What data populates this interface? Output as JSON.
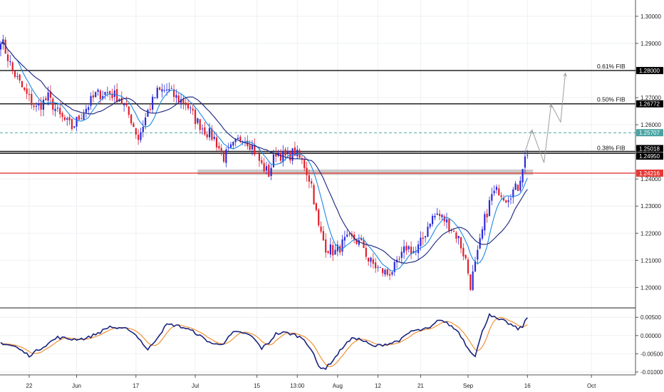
{
  "chart_data": [
    {
      "type": "candlestick",
      "panel": "price",
      "y_axis_ticks": [
        "1.30000",
        "1.29000",
        "1.28000",
        "1.27000",
        "1.26000",
        "1.25000",
        "1.24000",
        "1.23000",
        "1.22000",
        "1.21000",
        "1.20000"
      ],
      "ylim": [
        1.193,
        1.306
      ],
      "x_axis_ticks": [
        "22",
        "Jun",
        "17",
        "Jul",
        "15",
        "13:00",
        "Aug",
        "12",
        "21",
        "Sep",
        "16",
        "Oct"
      ],
      "grid": true,
      "ma_series": [
        {
          "color": "#1e88e5",
          "role": "fast-ma"
        },
        {
          "color": "#1a237e",
          "role": "slow-ma"
        }
      ],
      "candle_colors": {
        "up": "#2b2bd9",
        "down": "#e0202c"
      },
      "close_keyframes": [
        [
          0,
          1.292
        ],
        [
          5,
          1.28
        ],
        [
          10,
          1.272
        ],
        [
          15,
          1.266
        ],
        [
          20,
          1.27
        ],
        [
          25,
          1.263
        ],
        [
          30,
          1.259
        ],
        [
          35,
          1.265
        ],
        [
          40,
          1.271
        ],
        [
          45,
          1.272
        ],
        [
          50,
          1.27
        ],
        [
          55,
          1.262
        ],
        [
          58,
          1.255
        ],
        [
          62,
          1.265
        ],
        [
          66,
          1.272
        ],
        [
          70,
          1.273
        ],
        [
          74,
          1.27
        ],
        [
          78,
          1.268
        ],
        [
          82,
          1.262
        ],
        [
          86,
          1.258
        ],
        [
          90,
          1.255
        ],
        [
          94,
          1.248
        ],
        [
          98,
          1.252
        ],
        [
          102,
          1.256
        ],
        [
          106,
          1.252
        ],
        [
          110,
          1.245
        ],
        [
          113,
          1.242
        ],
        [
          116,
          1.25
        ],
        [
          120,
          1.248
        ],
        [
          124,
          1.25
        ],
        [
          128,
          1.245
        ],
        [
          131,
          1.238
        ],
        [
          134,
          1.222
        ],
        [
          137,
          1.215
        ],
        [
          141,
          1.213
        ],
        [
          145,
          1.217
        ],
        [
          149,
          1.218
        ],
        [
          153,
          1.215
        ],
        [
          155,
          1.21
        ],
        [
          159,
          1.207
        ],
        [
          163,
          1.205
        ],
        [
          167,
          1.208
        ],
        [
          171,
          1.215
        ],
        [
          175,
          1.213
        ],
        [
          178,
          1.218
        ],
        [
          181,
          1.225
        ],
        [
          184,
          1.227
        ],
        [
          187,
          1.225
        ],
        [
          190,
          1.222
        ],
        [
          193,
          1.218
        ],
        [
          196,
          1.21
        ],
        [
          198,
          1.201
        ],
        [
          201,
          1.212
        ],
        [
          204,
          1.225
        ],
        [
          207,
          1.234
        ],
        [
          210,
          1.236
        ],
        [
          213,
          1.233
        ],
        [
          215,
          1.235
        ],
        [
          218,
          1.237
        ],
        [
          220,
          1.245
        ],
        [
          222,
          1.25
        ]
      ],
      "horizontal_levels": [
        {
          "price": 1.28,
          "label": "0.61% FIB",
          "price_label": "1.28000",
          "color": "#111111",
          "style": "solid"
        },
        {
          "price": 1.26772,
          "label": "0.50% FIB",
          "price_label": "1.26772",
          "color": "#111111",
          "style": "solid"
        },
        {
          "price": 1.25707,
          "label": "",
          "price_label": "1.25707",
          "color": "#4aa3a3",
          "style": "dashed"
        },
        {
          "price": 1.25018,
          "label": "0.38% FIB",
          "price_label": "1.25018",
          "color": "#111111",
          "style": "solid"
        },
        {
          "price": 1.2495,
          "label": "",
          "price_label": "1.24950",
          "color": "#111111",
          "style": "solid"
        },
        {
          "price": 1.24216,
          "label": "",
          "price_label": "1.24216",
          "color": "#e53935",
          "style": "solid"
        }
      ],
      "support_zone": {
        "from": 1.2415,
        "to": 1.2435,
        "color": "#9e9e9e"
      },
      "projection_path": [
        [
          1.25,
          0
        ],
        [
          1.258,
          1
        ],
        [
          1.246,
          2
        ],
        [
          1.2675,
          3
        ],
        [
          1.261,
          4
        ],
        [
          1.279,
          5
        ]
      ]
    },
    {
      "type": "line",
      "panel": "oscillator",
      "y_axis_ticks": [
        "0.00500",
        "0.00000",
        "-0.00500",
        "-0.01000"
      ],
      "ylim": [
        -0.0108,
        0.0072
      ],
      "series": [
        {
          "color": "#1a237e",
          "role": "main"
        },
        {
          "color": "#f08a24",
          "role": "signal"
        }
      ],
      "keyframes": [
        [
          0,
          -0.002
        ],
        [
          6,
          -0.003
        ],
        [
          12,
          -0.0055
        ],
        [
          18,
          -0.003
        ],
        [
          24,
          -0.0005
        ],
        [
          30,
          -0.001
        ],
        [
          36,
          -0.0008
        ],
        [
          42,
          0.001
        ],
        [
          46,
          0.0025
        ],
        [
          50,
          0.0018
        ],
        [
          54,
          0.0018
        ],
        [
          58,
          -0.0005
        ],
        [
          62,
          -0.004
        ],
        [
          66,
          -0.0005
        ],
        [
          70,
          0.003
        ],
        [
          74,
          0.0028
        ],
        [
          78,
          0.002
        ],
        [
          82,
          0.0008
        ],
        [
          86,
          -0.001
        ],
        [
          90,
          -0.0025
        ],
        [
          94,
          -0.002
        ],
        [
          98,
          0.0008
        ],
        [
          102,
          0.0008
        ],
        [
          106,
          -0.0003
        ],
        [
          110,
          -0.0035
        ],
        [
          113,
          -0.002
        ],
        [
          116,
          0.0005
        ],
        [
          120,
          0.0008
        ],
        [
          124,
          0.0002
        ],
        [
          128,
          -0.001
        ],
        [
          131,
          -0.004
        ],
        [
          134,
          -0.0085
        ],
        [
          137,
          -0.009
        ],
        [
          141,
          -0.006
        ],
        [
          145,
          -0.0025
        ],
        [
          149,
          -0.0005
        ],
        [
          153,
          -0.0015
        ],
        [
          157,
          -0.003
        ],
        [
          161,
          -0.0025
        ],
        [
          165,
          -0.002
        ],
        [
          169,
          -0.001
        ],
        [
          173,
          0.0012
        ],
        [
          177,
          0.0015
        ],
        [
          181,
          0.002
        ],
        [
          185,
          0.0045
        ],
        [
          189,
          0.003
        ],
        [
          193,
          0.001
        ],
        [
          197,
          -0.0035
        ],
        [
          200,
          -0.0055
        ],
        [
          203,
          0.001
        ],
        [
          206,
          0.006
        ],
        [
          209,
          0.0045
        ],
        [
          212,
          0.004
        ],
        [
          215,
          0.003
        ],
        [
          218,
          0.0018
        ],
        [
          220,
          0.0025
        ],
        [
          222,
          0.005
        ]
      ]
    }
  ]
}
